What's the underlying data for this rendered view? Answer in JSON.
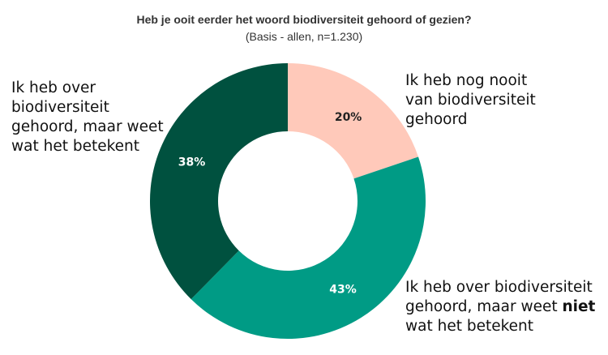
{
  "chart_data": {
    "type": "pie",
    "donut": true,
    "title": "Heb je ooit eerder het woord  biodiversiteit gehoord of gezien?",
    "subtitle": "(Basis - allen, n=1.230)",
    "start": "top, clockwise",
    "slices": [
      {
        "label": "Ik heb nog nooit van biodiversiteit gehoord",
        "value": 20,
        "data_label": "20%",
        "color": "#FFC9BA",
        "label_color": "#222222"
      },
      {
        "label": "Ik heb over biodiversiteit gehoord, maar weet niet wat het betekent",
        "value": 43,
        "data_label": "43%",
        "color": "#009B85",
        "label_color": "#ffffff"
      },
      {
        "label": "Ik heb over biodiversiteit gehoord, maar weet wat het betekent",
        "value": 38,
        "data_label": "38%",
        "color": "#00513F",
        "label_color": "#ffffff"
      }
    ]
  },
  "labels": {
    "nooit": [
      "Ik heb nog nooit",
      "van biodiversiteit",
      "gehoord"
    ],
    "niet": {
      "l1": "Ik heb over biodiversiteit",
      "l2a": "gehoord, maar weet ",
      "l2b": "niet",
      "l3": "wat het betekent"
    },
    "wel": [
      "Ik heb over",
      "biodiversiteit",
      "gehoord, maar weet",
      "wat het betekent"
    ]
  }
}
